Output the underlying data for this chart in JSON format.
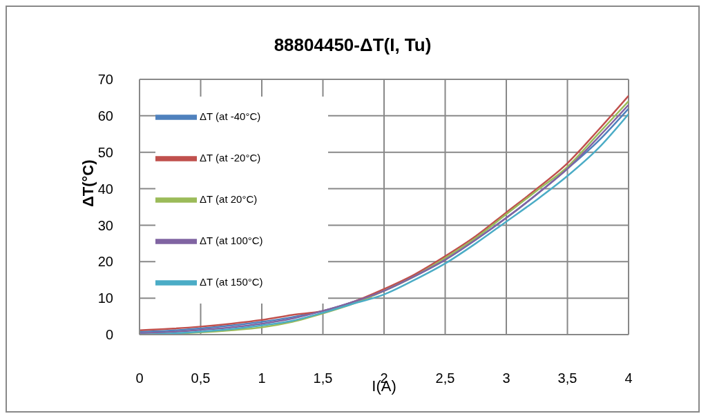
{
  "chart_data": {
    "type": "line",
    "title": "88804450-ΔT(I, Tu)",
    "xlabel": "I(A)",
    "ylabel": "ΔT(°C)",
    "x": [
      0,
      0.25,
      0.5,
      0.75,
      1,
      1.25,
      1.5,
      1.75,
      2,
      2.25,
      2.5,
      2.75,
      3,
      3.25,
      3.5,
      3.75,
      4
    ],
    "series": [
      {
        "name": "ΔT (at -40°C)",
        "color": "#4f81bd",
        "values": [
          0.8,
          1.1,
          1.7,
          2.5,
          3.5,
          4.8,
          6.5,
          9,
          12,
          16,
          20.5,
          26,
          32,
          38.5,
          45.5,
          53,
          62
        ]
      },
      {
        "name": "ΔT (at -20°C)",
        "color": "#c0504d",
        "values": [
          1.2,
          1.6,
          2.2,
          3,
          4,
          5.4,
          6.5,
          9,
          12.5,
          16.5,
          21.5,
          27,
          33.5,
          40,
          47,
          56,
          65.5
        ]
      },
      {
        "name": "ΔT (at 20°C)",
        "color": "#9bbb59",
        "values": [
          0,
          0.2,
          0.6,
          1.2,
          2,
          3.5,
          5.8,
          8.5,
          12,
          16,
          21,
          26.5,
          33,
          39.5,
          46,
          55,
          64
        ]
      },
      {
        "name": "ΔT (at 100°C)",
        "color": "#8064a2",
        "values": [
          0.4,
          0.7,
          1.3,
          2,
          3,
          4.4,
          6.5,
          9,
          12,
          16,
          20.5,
          26,
          32,
          38.5,
          45.5,
          54,
          63
        ]
      },
      {
        "name": "ΔT (at 150°C)",
        "color": "#4bacc6",
        "values": [
          0,
          0.3,
          0.8,
          1.5,
          2.5,
          3.8,
          6,
          8.5,
          11,
          15,
          19.5,
          25,
          31,
          37,
          43.5,
          51,
          60.5
        ]
      }
    ],
    "xlim": [
      0,
      4
    ],
    "xticks": [
      0,
      {
        "value": 0.5,
        "label": "0,5"
      },
      1,
      {
        "value": 1.5,
        "label": "1,5"
      },
      2,
      {
        "value": 2.5,
        "label": "2,5"
      },
      3,
      {
        "value": 3.5,
        "label": "3,5"
      },
      4
    ],
    "ylim": [
      0,
      70
    ],
    "yticks": [
      0,
      10,
      20,
      30,
      40,
      50,
      60,
      70
    ],
    "grid": true,
    "legend": "top left",
    "marker": "none",
    "line_style": "solid"
  }
}
